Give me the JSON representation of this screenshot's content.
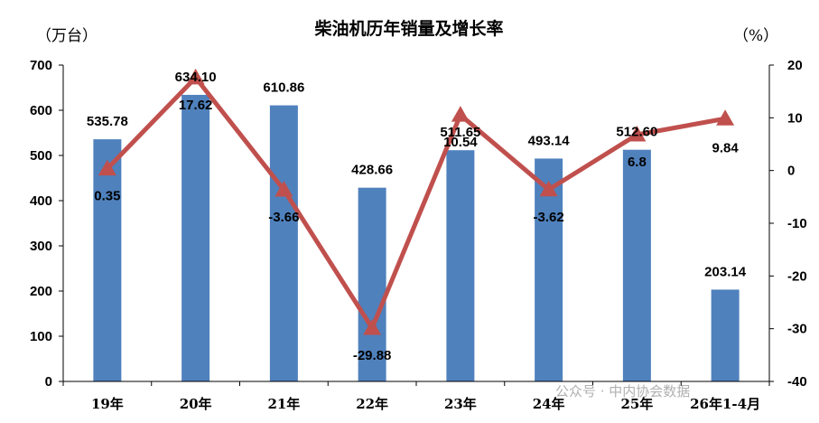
{
  "chart_data": {
    "type": "bar",
    "title": "柴油机历年销量及增长率",
    "categories": [
      "19年",
      "20年",
      "21年",
      "22年",
      "23年",
      "24年",
      "25年",
      "26年1-4月"
    ],
    "series": [
      {
        "axis": "left",
        "type": "bar",
        "values": [
          535.78,
          634.1,
          610.86,
          428.66,
          511.65,
          493.14,
          512.6,
          203.14
        ],
        "labels": [
          "535.78",
          "634.10",
          "610.86",
          "428.66",
          "511.65",
          "493.14",
          "512.60",
          "203.14"
        ],
        "color": "#4f81bd"
      },
      {
        "axis": "right",
        "type": "line",
        "values": [
          0.35,
          17.62,
          -3.66,
          -29.88,
          10.54,
          -3.62,
          6.8,
          9.84
        ],
        "labels": [
          "0.35",
          "17.62",
          "-3.66",
          "-29.88",
          "10.54",
          "-3.62",
          "6.8",
          "9.84"
        ],
        "color": "#c0504d"
      }
    ],
    "y_left": {
      "unit_label": "（万台）",
      "ylim": [
        0,
        700
      ],
      "ticks": [
        "0",
        "100",
        "200",
        "300",
        "400",
        "500",
        "600",
        "700"
      ]
    },
    "y_right": {
      "unit_label": "（%）",
      "ylim": [
        -40,
        20
      ],
      "ticks": [
        "-40",
        "-30",
        "-20",
        "-10",
        "0",
        "10",
        "20"
      ]
    },
    "grid": false,
    "legend": "none"
  },
  "watermark": "公众号 · 中内协会数据"
}
